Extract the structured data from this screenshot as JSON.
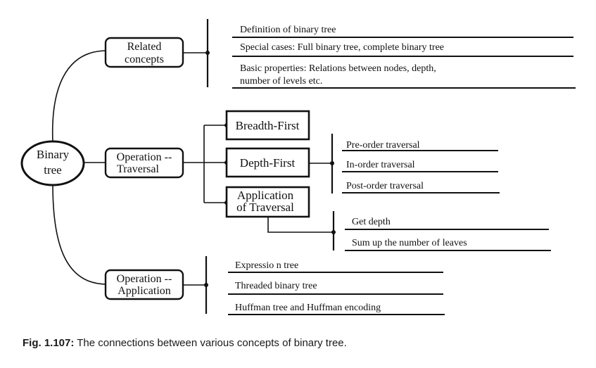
{
  "root": {
    "line1": "Binary",
    "line2": "tree"
  },
  "branches": {
    "related": {
      "line1": "Related",
      "line2": "concepts"
    },
    "traversal": {
      "line1": "Operation --",
      "line2": "Traversal"
    },
    "application": {
      "line1": "Operation --",
      "line2": "Application"
    }
  },
  "related_items": [
    "Definition of binary tree",
    "Special cases: Full binary tree, complete binary tree",
    "Basic properties: Relations between nodes, depth,",
    "number of levels etc."
  ],
  "traversal_types": {
    "breadth_first": "Breadth-First",
    "depth_first": "Depth-First",
    "application_line1": "Application",
    "application_line2": "of Traversal"
  },
  "depth_first_items": [
    "Pre-order traversal",
    "In-order traversal",
    "Post-order traversal"
  ],
  "traversal_application_items": [
    "Get depth",
    "Sum up the number of leaves"
  ],
  "application_items": [
    "Expressio n tree",
    "Threaded binary tree",
    "Huffman tree and Huffman encoding"
  ],
  "caption": {
    "label": "Fig. 1.107:",
    "text": " The connections between various concepts of binary tree."
  }
}
